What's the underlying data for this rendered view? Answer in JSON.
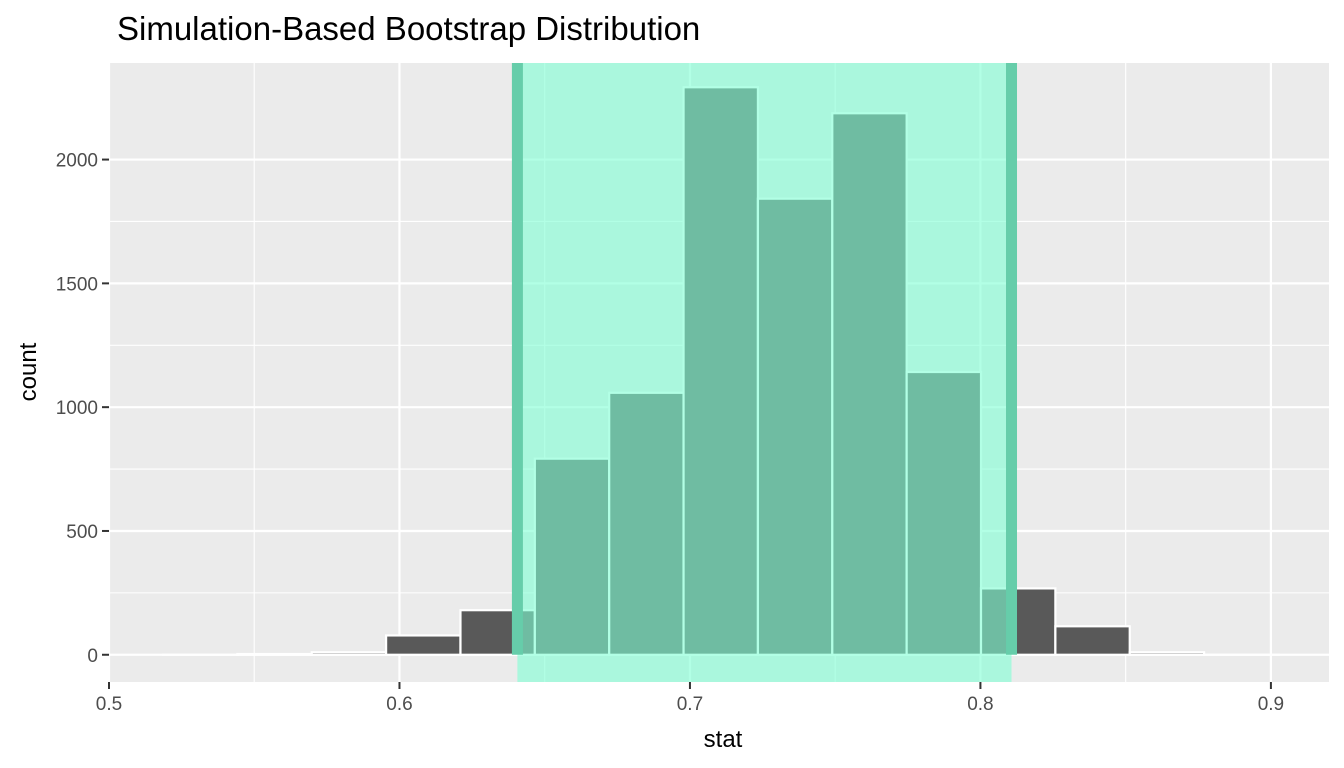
{
  "chart_data": {
    "type": "bar",
    "title": "Simulation-Based Bootstrap Distribution",
    "xlabel": "stat",
    "ylabel": "count",
    "xlim": [
      0.5,
      0.92
    ],
    "ylim": [
      -110,
      2390
    ],
    "x_ticks": [
      0.5,
      0.6,
      0.7,
      0.8,
      0.9
    ],
    "x_tick_labels": [
      "0.5",
      "0.6",
      "0.7",
      "0.8",
      "0.9"
    ],
    "y_ticks": [
      0,
      500,
      1000,
      1500,
      2000
    ],
    "y_tick_labels": [
      "0",
      "500",
      "1000",
      "1500",
      "2000"
    ],
    "bin_width": 0.0256,
    "bins": [
      {
        "start": 0.5186,
        "end": 0.5442,
        "count": 0
      },
      {
        "start": 0.5442,
        "end": 0.5698,
        "count": 3
      },
      {
        "start": 0.5698,
        "end": 0.5954,
        "count": 10
      },
      {
        "start": 0.5954,
        "end": 0.621,
        "count": 78
      },
      {
        "start": 0.621,
        "end": 0.6466,
        "count": 180
      },
      {
        "start": 0.6466,
        "end": 0.6722,
        "count": 792
      },
      {
        "start": 0.6722,
        "end": 0.6978,
        "count": 1058
      },
      {
        "start": 0.6978,
        "end": 0.7234,
        "count": 2292
      },
      {
        "start": 0.7234,
        "end": 0.749,
        "count": 1842
      },
      {
        "start": 0.749,
        "end": 0.7746,
        "count": 2187
      },
      {
        "start": 0.7746,
        "end": 0.8002,
        "count": 1142
      },
      {
        "start": 0.8002,
        "end": 0.8258,
        "count": 268
      },
      {
        "start": 0.8258,
        "end": 0.8514,
        "count": 115
      },
      {
        "start": 0.8514,
        "end": 0.877,
        "count": 10
      },
      {
        "start": 0.877,
        "end": 0.9026,
        "count": 0
      }
    ],
    "confidence_interval": {
      "lower": 0.6406,
      "upper": 0.8107
    },
    "grid": true,
    "colors": {
      "panel_background": "#EBEBEB",
      "grid_line": "#FFFFFF",
      "bar_fill": "#595959",
      "bar_outline": "#FFFFFF",
      "ci_fill": "#7FFFD4",
      "ci_line": "#66CDAA"
    }
  }
}
